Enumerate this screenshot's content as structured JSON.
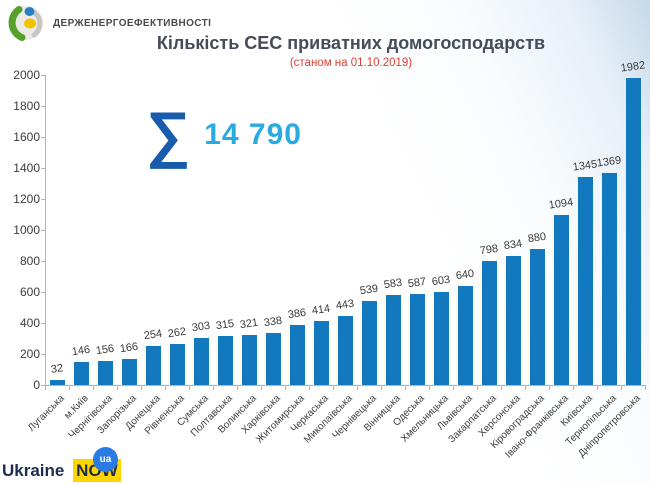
{
  "header": {
    "agency_name": "ДЕРЖЕНЕРГОЕФЕКТИВНОСТІ"
  },
  "chart_data": {
    "type": "bar",
    "title": "Кількість СЕС приватних домогосподарств",
    "subtitle": "(станом на 01.10.2019)",
    "total_symbol": "∑",
    "total_value": "14 790",
    "categories": [
      "Луганська",
      "м.Київ",
      "Чернігівська",
      "Запорізька",
      "Донецька",
      "Рівненська",
      "Сумська",
      "Полтавська",
      "Волинська",
      "Харківська",
      "Житомирська",
      "Черкаська",
      "Миколаївська",
      "Чернівецька",
      "Вінницька",
      "Одеська",
      "Хмельницька",
      "Львівська",
      "Закарпатська",
      "Херсонська",
      "Кіровоградська",
      "Івано-Франківська",
      "Київська",
      "Тернопільська",
      "Дніпропетровська"
    ],
    "values": [
      32,
      146,
      156,
      166,
      254,
      262,
      303,
      315,
      321,
      338,
      386,
      414,
      443,
      539,
      583,
      587,
      603,
      640,
      798,
      834,
      880,
      1094,
      1345,
      1369,
      1982
    ],
    "ylim": [
      0,
      2000
    ],
    "yticks": [
      0,
      200,
      400,
      600,
      800,
      1000,
      1200,
      1400,
      1600,
      1800,
      2000
    ],
    "grid": false,
    "legend": "none",
    "bar_color": "#1279BE",
    "xlabel": "",
    "ylabel": ""
  },
  "footer": {
    "brand_ukraine": "Ukraine",
    "brand_now": "NOW",
    "brand_ua": "ua"
  },
  "colors": {
    "bar": "#1279BE",
    "sigma_blue": "#1A5CAC",
    "total_cyan": "#29ABE2",
    "subtitle_red": "#E03E33",
    "title_gray": "#454C59",
    "brand_yellow": "#FFD500",
    "brand_navy": "#1D2D50",
    "brand_circle_blue": "#2C7BE5"
  }
}
